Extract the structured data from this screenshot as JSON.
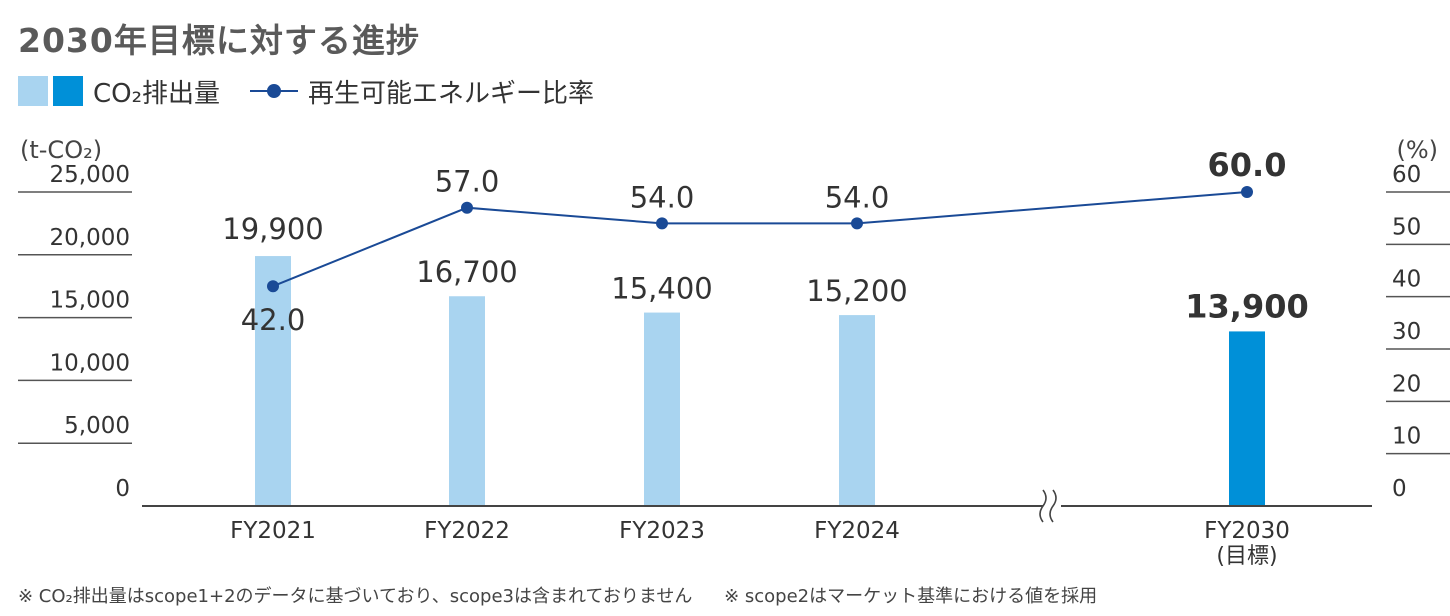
{
  "title": "2030年目標に対する進捗",
  "legend": {
    "bars_label": "CO₂排出量",
    "line_label": "再生可能エネルギー比率"
  },
  "axes": {
    "left_unit": "(t-CO₂)",
    "right_unit": "(%)"
  },
  "notes": [
    "※ CO₂排出量はscope1+2のデータに基づいており、scope3は含まれておりません",
    "※ scope2はマーケット基準における値を採用"
  ],
  "colors": {
    "bar_actual": "#a9d4f0",
    "bar_target": "#0090d8",
    "line": "#1a4a96",
    "axis": "#444444"
  },
  "chart_data": {
    "type": "bar",
    "categories": [
      "FY2021",
      "FY2022",
      "FY2023",
      "FY2024",
      "FY2030"
    ],
    "category_sublabels": [
      "",
      "",
      "",
      "",
      "(目標)"
    ],
    "axis_break_before": "FY2030",
    "series": [
      {
        "name": "CO₂排出量",
        "type": "bar",
        "axis": "left",
        "values": [
          19900,
          16700,
          15400,
          15200,
          13900
        ],
        "labels": [
          "19,900",
          "16,700",
          "15,400",
          "15,200",
          "13,900"
        ],
        "highlight": [
          false,
          false,
          false,
          false,
          true
        ]
      },
      {
        "name": "再生可能エネルギー比率",
        "type": "line",
        "axis": "right",
        "values": [
          42.0,
          57.0,
          54.0,
          54.0,
          60.0
        ],
        "labels": [
          "42.0",
          "57.0",
          "54.0",
          "54.0",
          "60.0"
        ],
        "highlight": [
          false,
          false,
          false,
          false,
          true
        ]
      }
    ],
    "left_axis": {
      "ylim": [
        0,
        25000
      ],
      "ticks": [
        0,
        5000,
        10000,
        15000,
        20000,
        25000
      ],
      "tick_labels": [
        "0",
        "5,000",
        "10,000",
        "15,000",
        "20,000",
        "25,000"
      ]
    },
    "right_axis": {
      "ylim": [
        0,
        60
      ],
      "ticks": [
        0,
        10,
        20,
        30,
        40,
        50,
        60
      ],
      "tick_labels": [
        "0",
        "10",
        "20",
        "30",
        "40",
        "50",
        "60"
      ]
    },
    "grid": false,
    "legend_position": "top-left"
  }
}
